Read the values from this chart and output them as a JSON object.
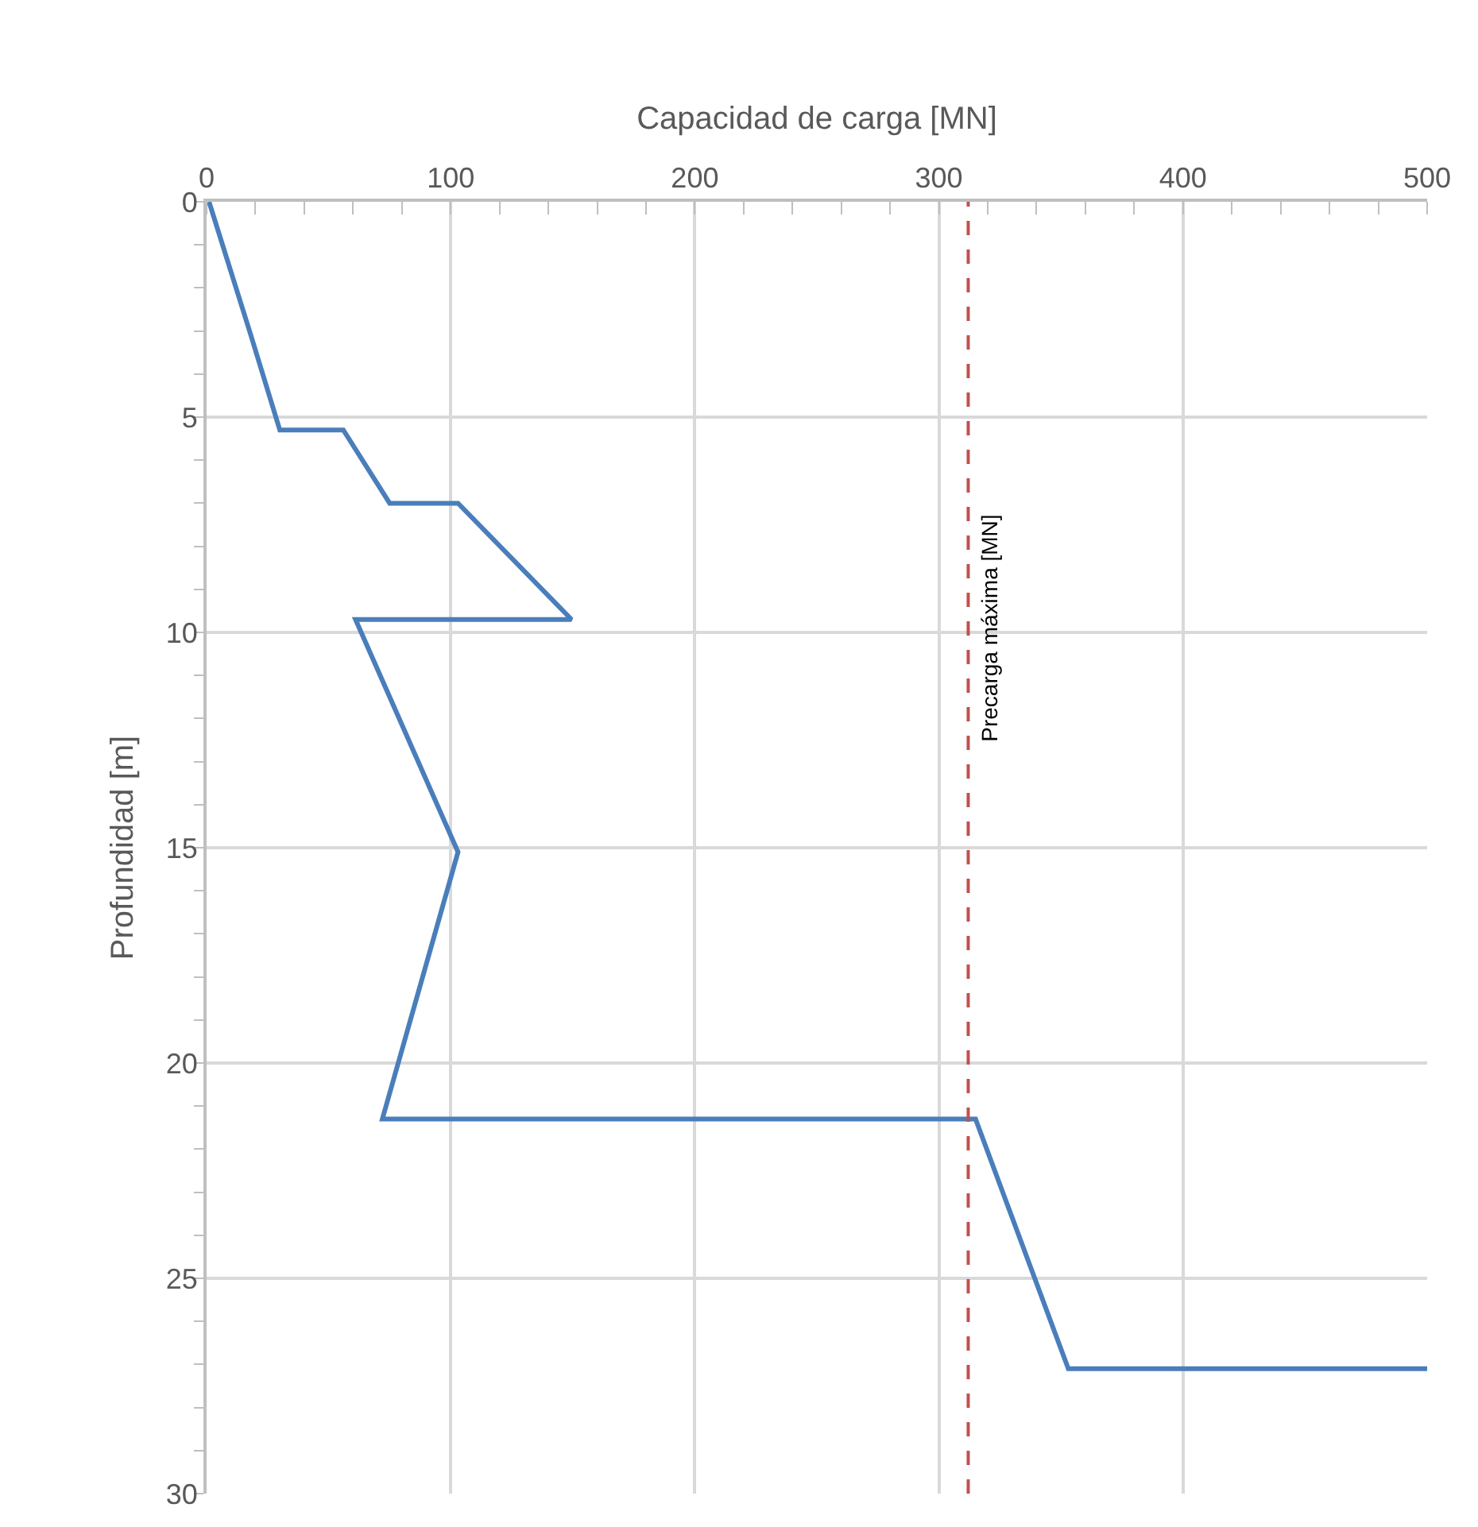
{
  "chart_data": {
    "type": "line",
    "xlabel": "Capacidad de carga [MN]",
    "ylabel": "Profundidad [m]",
    "xlim": [
      0,
      500
    ],
    "xticks": [
      0,
      100,
      200,
      300,
      400,
      500
    ],
    "ylim": [
      30,
      0
    ],
    "yticks": [
      0,
      5,
      10,
      15,
      20,
      25,
      30
    ],
    "grid": true,
    "marker": "none",
    "line_style": "solid",
    "series": [
      {
        "color": "#4a7ebb",
        "x": [
          1,
          17.6,
          30,
          56,
          75,
          103,
          149.5,
          61,
          103,
          72,
          315,
          353,
          500
        ],
        "values": [
          0,
          3.0,
          5.3,
          5.3,
          7.0,
          7.0,
          9.7,
          9.7,
          15.1,
          21.3,
          21.3,
          27.1,
          27.1
        ]
      }
    ],
    "ref_lines": [
      {
        "axis": "x",
        "value": 312,
        "label": "Precarga máxima [MN]",
        "color": "#c0504d",
        "line_style": "dashed"
      }
    ]
  }
}
